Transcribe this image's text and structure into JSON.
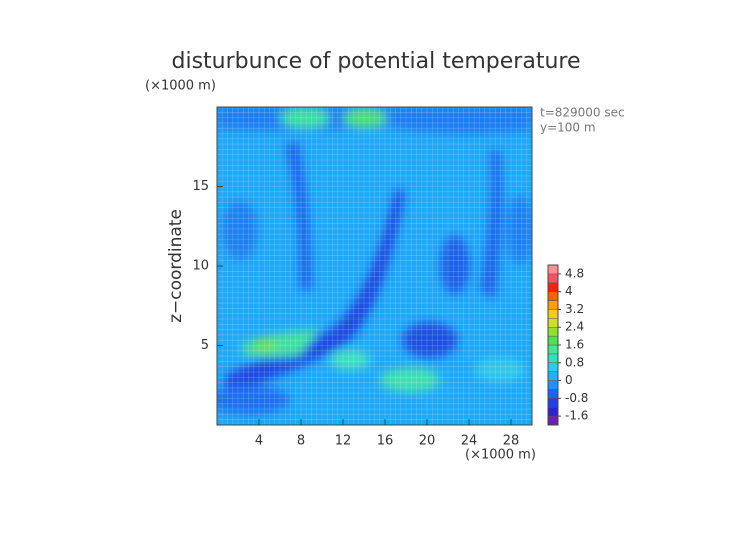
{
  "chart_data": {
    "type": "heatmap",
    "title": "disturbunce of potential temperature",
    "x_unit": "(×1000 m)",
    "y_unit": "(×1000 m)",
    "ylabel": "z−coordinate",
    "annotations": [
      "t=829000 sec",
      "y=100 m"
    ],
    "xlim": [
      0,
      30
    ],
    "xticks": [
      4,
      8,
      12,
      16,
      20,
      24,
      28
    ],
    "ylim": [
      0,
      20
    ],
    "yticks": [
      5,
      10,
      15
    ],
    "grid": true,
    "colorbar": {
      "lim": [
        -2,
        5.2
      ],
      "ticks": [
        -1.6,
        -0.8,
        0,
        0.8,
        1.6,
        2.4,
        3.2,
        4,
        4.8
      ],
      "colors": [
        "#7020b0",
        "#3020d0",
        "#2040f0",
        "#2060ff",
        "#2090ff",
        "#20b0ff",
        "#20d0f0",
        "#30e0c0",
        "#40e890",
        "#50e050",
        "#90e030",
        "#d0e020",
        "#f0d010",
        "#ffa000",
        "#ff6000",
        "#ff2000",
        "#ff5060",
        "#ff9090"
      ]
    }
  }
}
